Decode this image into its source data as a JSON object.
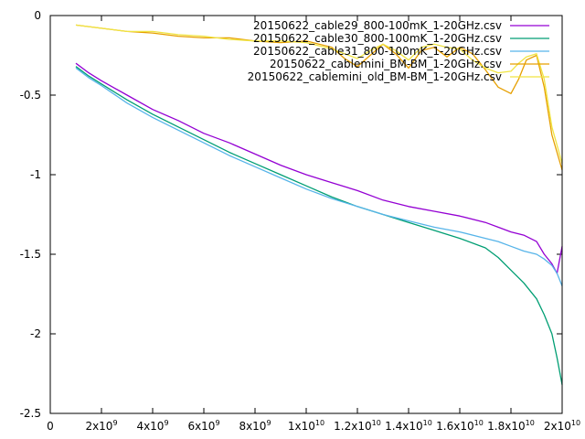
{
  "chart_data": {
    "type": "line",
    "title": "",
    "xlabel": "",
    "ylabel": "",
    "xlim": [
      0,
      20000000000
    ],
    "ylim": [
      -2.5,
      0
    ],
    "grid": false,
    "legend_position": "top-right",
    "x_ticks": [
      {
        "value": 0,
        "base": "0",
        "exp": ""
      },
      {
        "value": 2000000000,
        "base": "2x10",
        "exp": "9"
      },
      {
        "value": 4000000000,
        "base": "4x10",
        "exp": "9"
      },
      {
        "value": 6000000000,
        "base": "6x10",
        "exp": "9"
      },
      {
        "value": 8000000000,
        "base": "8x10",
        "exp": "9"
      },
      {
        "value": 10000000000,
        "base": "1x10",
        "exp": "10"
      },
      {
        "value": 12000000000,
        "base": "1.2x10",
        "exp": "10"
      },
      {
        "value": 14000000000,
        "base": "1.4x10",
        "exp": "10"
      },
      {
        "value": 16000000000,
        "base": "1.6x10",
        "exp": "10"
      },
      {
        "value": 18000000000,
        "base": "1.8x10",
        "exp": "10"
      },
      {
        "value": 20000000000,
        "base": "2x10",
        "exp": "10"
      }
    ],
    "y_ticks": [
      {
        "value": 0,
        "label": "0"
      },
      {
        "value": -0.5,
        "label": "-0.5"
      },
      {
        "value": -1,
        "label": "-1"
      },
      {
        "value": -1.5,
        "label": "-1.5"
      },
      {
        "value": -2,
        "label": "-2"
      },
      {
        "value": -2.5,
        "label": "-2.5"
      }
    ],
    "series": [
      {
        "name": "20150622_cable29_800-100mK_1-20GHz.csv",
        "color": "#9400d3",
        "x": [
          1000000000,
          1500000000,
          2000000000,
          3000000000,
          4000000000,
          5000000000,
          6000000000,
          7000000000,
          8000000000,
          9000000000,
          10000000000,
          11000000000,
          12000000000,
          13000000000,
          14000000000,
          15000000000,
          16000000000,
          17000000000,
          17500000000,
          18000000000,
          18500000000,
          19000000000,
          19300000000,
          19600000000,
          19800000000,
          20000000000
        ],
        "y": [
          -0.3,
          -0.36,
          -0.41,
          -0.5,
          -0.59,
          -0.66,
          -0.74,
          -0.8,
          -0.87,
          -0.94,
          -1.0,
          -1.05,
          -1.1,
          -1.16,
          -1.2,
          -1.23,
          -1.26,
          -1.3,
          -1.33,
          -1.36,
          -1.38,
          -1.42,
          -1.5,
          -1.56,
          -1.62,
          -1.45
        ]
      },
      {
        "name": "20150622_cable30_800-100mK_1-20GHz.csv",
        "color": "#009e73",
        "x": [
          1000000000,
          1500000000,
          2000000000,
          3000000000,
          4000000000,
          5000000000,
          6000000000,
          7000000000,
          8000000000,
          9000000000,
          10000000000,
          11000000000,
          12000000000,
          13000000000,
          14000000000,
          15000000000,
          16000000000,
          17000000000,
          17500000000,
          18000000000,
          18500000000,
          19000000000,
          19300000000,
          19600000000,
          19800000000,
          20000000000
        ],
        "y": [
          -0.32,
          -0.38,
          -0.43,
          -0.53,
          -0.62,
          -0.7,
          -0.78,
          -0.86,
          -0.93,
          -1.0,
          -1.07,
          -1.14,
          -1.2,
          -1.25,
          -1.3,
          -1.35,
          -1.4,
          -1.46,
          -1.52,
          -1.6,
          -1.68,
          -1.78,
          -1.88,
          -2.0,
          -2.15,
          -2.32
        ]
      },
      {
        "name": "20150622_cable31_800-100mK_1-20GHz.csv",
        "color": "#56b4e9",
        "x": [
          1000000000,
          1500000000,
          2000000000,
          3000000000,
          4000000000,
          5000000000,
          6000000000,
          7000000000,
          8000000000,
          9000000000,
          10000000000,
          11000000000,
          12000000000,
          13000000000,
          14000000000,
          15000000000,
          16000000000,
          17000000000,
          17500000000,
          18000000000,
          18500000000,
          19000000000,
          19300000000,
          19600000000,
          19800000000,
          20000000000
        ],
        "y": [
          -0.33,
          -0.39,
          -0.44,
          -0.55,
          -0.64,
          -0.72,
          -0.8,
          -0.88,
          -0.95,
          -1.02,
          -1.09,
          -1.15,
          -1.2,
          -1.25,
          -1.29,
          -1.33,
          -1.36,
          -1.4,
          -1.42,
          -1.45,
          -1.48,
          -1.5,
          -1.53,
          -1.57,
          -1.62,
          -1.7
        ]
      },
      {
        "name": "20150622_cablemini_BM-BM_1-20GHz.csv",
        "color": "#e69f00",
        "x": [
          1000000000,
          2000000000,
          3000000000,
          4000000000,
          5000000000,
          6000000000,
          7000000000,
          8000000000,
          9000000000,
          10000000000,
          11000000000,
          11500000000,
          12000000000,
          12500000000,
          13000000000,
          13500000000,
          14000000000,
          14500000000,
          15000000000,
          15500000000,
          16000000000,
          16500000000,
          17000000000,
          17500000000,
          18000000000,
          18300000000,
          18600000000,
          19000000000,
          19300000000,
          19600000000,
          20000000000
        ],
        "y": [
          -0.06,
          -0.08,
          -0.1,
          -0.11,
          -0.13,
          -0.14,
          -0.14,
          -0.16,
          -0.17,
          -0.16,
          -0.2,
          -0.27,
          -0.32,
          -0.25,
          -0.18,
          -0.24,
          -0.33,
          -0.22,
          -0.2,
          -0.26,
          -0.2,
          -0.24,
          -0.34,
          -0.45,
          -0.49,
          -0.4,
          -0.28,
          -0.25,
          -0.45,
          -0.75,
          -0.97
        ]
      },
      {
        "name": "20150622_cablemini_old_BM-BM_1-20GHz.csv",
        "color": "#f0e442",
        "x": [
          1000000000,
          2000000000,
          3000000000,
          4000000000,
          5000000000,
          6000000000,
          7000000000,
          8000000000,
          9000000000,
          10000000000,
          11000000000,
          11500000000,
          12000000000,
          12500000000,
          13000000000,
          13500000000,
          14000000000,
          14500000000,
          15000000000,
          15500000000,
          16000000000,
          16500000000,
          17000000000,
          17500000000,
          18000000000,
          18300000000,
          18600000000,
          19000000000,
          19300000000,
          19600000000,
          20000000000
        ],
        "y": [
          -0.06,
          -0.08,
          -0.1,
          -0.1,
          -0.12,
          -0.13,
          -0.15,
          -0.16,
          -0.16,
          -0.17,
          -0.21,
          -0.24,
          -0.27,
          -0.22,
          -0.18,
          -0.22,
          -0.28,
          -0.2,
          -0.18,
          -0.2,
          -0.21,
          -0.28,
          -0.33,
          -0.36,
          -0.35,
          -0.3,
          -0.26,
          -0.24,
          -0.4,
          -0.7,
          -0.93
        ]
      }
    ]
  }
}
